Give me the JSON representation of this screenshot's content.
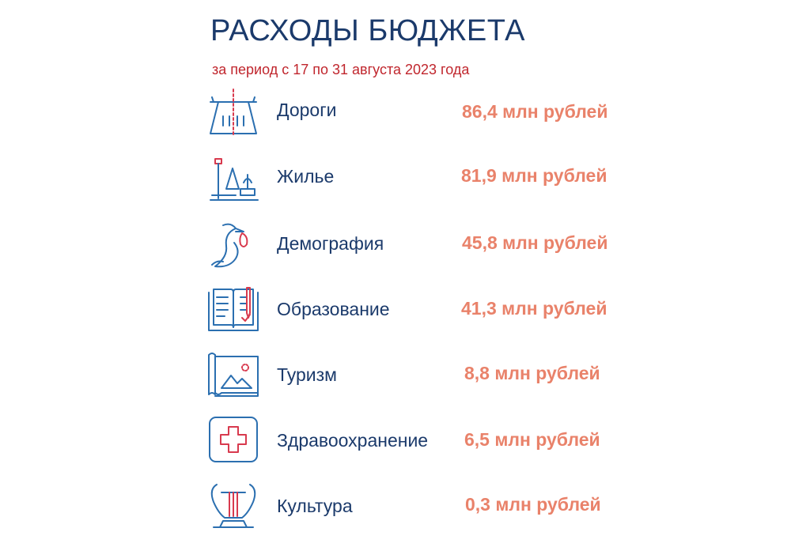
{
  "header": {
    "title": "РАСХОДЫ БЮДЖЕТА",
    "subtitle": "за период с 17 по 31 августа 2023 года"
  },
  "colors": {
    "title": "#1b3a6b",
    "subtitle": "#c0262d",
    "label": "#1b3a6b",
    "amount": "#e9826a",
    "icon_stroke": "#2b6fb0",
    "icon_accent": "#d83a4e"
  },
  "items": [
    {
      "icon": "road-icon",
      "label": "Дороги",
      "amount": "86,4 млн рублей"
    },
    {
      "icon": "housing-park-icon",
      "label": "Жилье",
      "amount": "81,9 млн рублей"
    },
    {
      "icon": "stork-icon",
      "label": "Демография",
      "amount": "45,8 млн рублей"
    },
    {
      "icon": "book-pencil-icon",
      "label": "Образование",
      "amount": "41,3 млн рублей"
    },
    {
      "icon": "map-picture-icon",
      "label": "Туризм",
      "amount": "8,8 млн рублей"
    },
    {
      "icon": "medical-cross-icon",
      "label": "Здравоохранение",
      "amount": "6,5 млн рублей"
    },
    {
      "icon": "lyre-icon",
      "label": "Культура",
      "amount": "0,3 млн рублей"
    }
  ]
}
